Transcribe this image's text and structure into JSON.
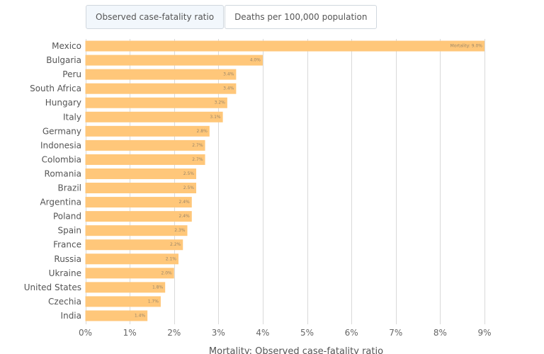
{
  "tabs": [
    {
      "label": "Observed case-fatality ratio",
      "active": true
    },
    {
      "label": "Deaths per 100,000 population",
      "active": false
    }
  ],
  "colors": {
    "bar": "#ffc77a",
    "grid": "#d9d9d9"
  },
  "chart_data": {
    "type": "bar",
    "orientation": "horizontal",
    "title": "",
    "xlabel": "Mortality: Observed case-fatality ratio",
    "ylabel": "",
    "xlim": [
      0,
      9
    ],
    "grid": true,
    "x_ticks": [
      "0%",
      "1%",
      "2%",
      "3%",
      "4%",
      "5%",
      "6%",
      "7%",
      "8%",
      "9%"
    ],
    "categories": [
      "Mexico",
      "Bulgaria",
      "Peru",
      "South Africa",
      "Hungary",
      "Italy",
      "Germany",
      "Indonesia",
      "Colombia",
      "Romania",
      "Brazil",
      "Argentina",
      "Poland",
      "Spain",
      "France",
      "Russia",
      "Ukraine",
      "United States",
      "Czechia",
      "India"
    ],
    "values": [
      9.0,
      4.0,
      3.4,
      3.4,
      3.2,
      3.1,
      2.8,
      2.7,
      2.7,
      2.5,
      2.5,
      2.4,
      2.4,
      2.3,
      2.2,
      2.1,
      2.0,
      1.8,
      1.7,
      1.4
    ],
    "data_labels": [
      "Mortality: 9.0%",
      "4.0%",
      "3.4%",
      "3.4%",
      "3.2%",
      "3.1%",
      "2.8%",
      "2.7%",
      "2.7%",
      "2.5%",
      "2.5%",
      "2.4%",
      "2.4%",
      "2.3%",
      "2.2%",
      "2.1%",
      "2.0%",
      "1.8%",
      "1.7%",
      "1.4%"
    ]
  }
}
